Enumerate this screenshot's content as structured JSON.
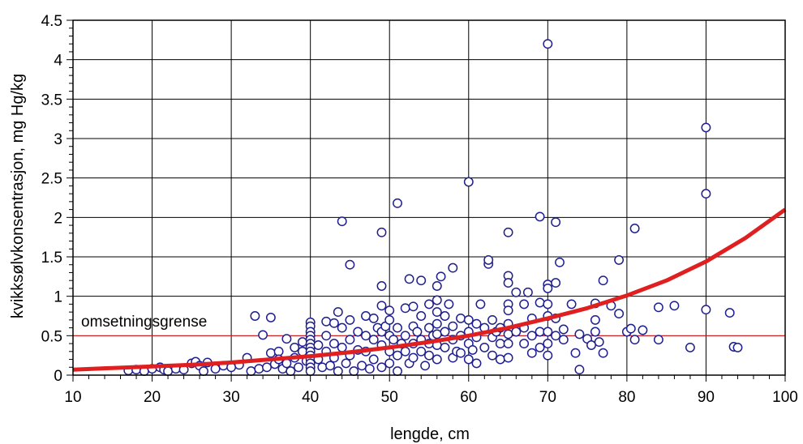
{
  "chart_data": {
    "type": "scatter",
    "title": "",
    "xlabel": "lengde, cm",
    "ylabel": "kvikksølvkonsentrasjon,  mg Hg/kg",
    "xlim": [
      10,
      100
    ],
    "ylim": [
      0,
      4.5
    ],
    "xticks": [
      10,
      20,
      30,
      40,
      50,
      60,
      70,
      80,
      90,
      100
    ],
    "yticks": [
      0,
      0.5,
      1,
      1.5,
      2,
      2.5,
      3,
      3.5,
      4,
      4.5
    ],
    "xtick_labels": [
      "10",
      "20",
      "30",
      "40",
      "50",
      "60",
      "70",
      "80",
      "90",
      "100"
    ],
    "ytick_labels": [
      "0",
      "0.5",
      "1",
      "1.5",
      "2",
      "2.5",
      "3",
      "3.5",
      "4",
      "4.5"
    ],
    "grid": true,
    "colors": {
      "points": "#1f1f8f",
      "curve": "#e02020",
      "threshold": "#e02020",
      "grid": "#000000"
    },
    "threshold": {
      "label": "omsetningsgrense",
      "y": 0.5
    },
    "fit_curve": {
      "x": [
        10,
        15,
        20,
        25,
        30,
        35,
        40,
        45,
        50,
        55,
        60,
        65,
        70,
        75,
        80,
        85,
        90,
        95,
        100
      ],
      "y": [
        0.07,
        0.09,
        0.11,
        0.13,
        0.16,
        0.2,
        0.24,
        0.29,
        0.35,
        0.42,
        0.5,
        0.6,
        0.72,
        0.85,
        1.01,
        1.2,
        1.44,
        1.74,
        2.1
      ]
    },
    "points": [
      [
        17,
        0.06
      ],
      [
        18,
        0.07
      ],
      [
        19,
        0.05
      ],
      [
        20,
        0.08
      ],
      [
        21,
        0.1
      ],
      [
        21.5,
        0.07
      ],
      [
        22,
        0.05
      ],
      [
        23,
        0.08
      ],
      [
        24,
        0.07
      ],
      [
        25,
        0.15
      ],
      [
        25.5,
        0.17
      ],
      [
        26,
        0.12
      ],
      [
        26.5,
        0.05
      ],
      [
        27,
        0.16
      ],
      [
        28,
        0.08
      ],
      [
        29,
        0.12
      ],
      [
        30,
        0.1
      ],
      [
        31,
        0.13
      ],
      [
        32,
        0.22
      ],
      [
        32.5,
        0.05
      ],
      [
        33,
        0.75
      ],
      [
        33.5,
        0.08
      ],
      [
        34,
        0.51
      ],
      [
        34.5,
        0.1
      ],
      [
        35,
        0.73
      ],
      [
        35,
        0.28
      ],
      [
        35.5,
        0.14
      ],
      [
        36,
        0.3
      ],
      [
        36,
        0.2
      ],
      [
        36.5,
        0.08
      ],
      [
        37,
        0.46
      ],
      [
        37,
        0.15
      ],
      [
        37.5,
        0.05
      ],
      [
        38,
        0.35
      ],
      [
        38,
        0.22
      ],
      [
        38.5,
        0.1
      ],
      [
        39,
        0.42
      ],
      [
        39,
        0.3
      ],
      [
        39.5,
        0.18
      ],
      [
        40,
        0.67
      ],
      [
        40,
        0.62
      ],
      [
        40,
        0.55
      ],
      [
        40,
        0.5
      ],
      [
        40,
        0.45
      ],
      [
        40,
        0.4
      ],
      [
        40,
        0.35
      ],
      [
        40,
        0.3
      ],
      [
        40,
        0.25
      ],
      [
        40,
        0.2
      ],
      [
        40,
        0.15
      ],
      [
        40,
        0.1
      ],
      [
        40,
        0.05
      ],
      [
        41,
        0.38
      ],
      [
        41,
        0.2
      ],
      [
        41.5,
        0.1
      ],
      [
        42,
        0.68
      ],
      [
        42,
        0.5
      ],
      [
        42,
        0.3
      ],
      [
        42.5,
        0.12
      ],
      [
        43,
        0.66
      ],
      [
        43,
        0.4
      ],
      [
        43,
        0.22
      ],
      [
        43.5,
        0.8
      ],
      [
        43.5,
        0.05
      ],
      [
        44,
        0.6
      ],
      [
        44,
        0.35
      ],
      [
        44,
        1.95
      ],
      [
        44.5,
        0.15
      ],
      [
        45,
        1.4
      ],
      [
        45,
        0.7
      ],
      [
        45,
        0.45
      ],
      [
        45,
        0.25
      ],
      [
        45.5,
        0.05
      ],
      [
        46,
        0.55
      ],
      [
        46,
        0.32
      ],
      [
        46.5,
        0.12
      ],
      [
        47,
        0.75
      ],
      [
        47,
        0.5
      ],
      [
        47,
        0.3
      ],
      [
        47.5,
        0.08
      ],
      [
        48,
        0.72
      ],
      [
        48,
        0.45
      ],
      [
        48,
        0.2
      ],
      [
        48.5,
        0.6
      ],
      [
        49,
        1.81
      ],
      [
        49,
        1.13
      ],
      [
        49,
        0.88
      ],
      [
        49,
        0.55
      ],
      [
        49,
        0.38
      ],
      [
        49,
        0.1
      ],
      [
        49.5,
        0.62
      ],
      [
        50,
        0.82
      ],
      [
        50,
        0.7
      ],
      [
        50,
        0.5
      ],
      [
        50,
        0.3
      ],
      [
        50,
        0.15
      ],
      [
        50.5,
        0.45
      ],
      [
        51,
        2.18
      ],
      [
        51,
        0.6
      ],
      [
        51,
        0.25
      ],
      [
        51,
        0.05
      ],
      [
        51.5,
        0.4
      ],
      [
        52,
        0.85
      ],
      [
        52,
        0.5
      ],
      [
        52,
        0.3
      ],
      [
        52.5,
        1.22
      ],
      [
        52.5,
        0.15
      ],
      [
        53,
        0.87
      ],
      [
        53,
        0.62
      ],
      [
        53,
        0.4
      ],
      [
        53,
        0.22
      ],
      [
        53.5,
        0.55
      ],
      [
        54,
        1.2
      ],
      [
        54,
        0.75
      ],
      [
        54,
        0.45
      ],
      [
        54,
        0.3
      ],
      [
        54.5,
        0.12
      ],
      [
        55,
        0.9
      ],
      [
        55,
        0.6
      ],
      [
        55,
        0.4
      ],
      [
        55,
        0.25
      ],
      [
        55.5,
        0.5
      ],
      [
        56,
        1.13
      ],
      [
        56,
        0.95
      ],
      [
        56,
        0.8
      ],
      [
        56,
        0.65
      ],
      [
        56,
        0.52
      ],
      [
        56,
        0.38
      ],
      [
        56,
        0.2
      ],
      [
        56.5,
        1.25
      ],
      [
        57,
        0.75
      ],
      [
        57,
        0.55
      ],
      [
        57,
        0.35
      ],
      [
        57.5,
        0.9
      ],
      [
        58,
        1.36
      ],
      [
        58,
        0.62
      ],
      [
        58,
        0.45
      ],
      [
        58,
        0.22
      ],
      [
        58.5,
        0.3
      ],
      [
        59,
        0.72
      ],
      [
        59,
        0.5
      ],
      [
        59,
        0.28
      ],
      [
        60,
        2.45
      ],
      [
        60,
        0.7
      ],
      [
        60,
        0.55
      ],
      [
        60,
        0.4
      ],
      [
        60,
        0.2
      ],
      [
        60.5,
        0.32
      ],
      [
        61,
        0.65
      ],
      [
        61,
        0.48
      ],
      [
        61,
        0.15
      ],
      [
        61.5,
        0.9
      ],
      [
        62,
        0.6
      ],
      [
        62,
        0.35
      ],
      [
        62.5,
        1.41
      ],
      [
        62.5,
        1.46
      ],
      [
        63,
        0.7
      ],
      [
        63,
        0.48
      ],
      [
        63,
        0.25
      ],
      [
        63.5,
        0.55
      ],
      [
        64,
        0.6
      ],
      [
        64,
        0.4
      ],
      [
        64,
        0.2
      ],
      [
        65,
        1.81
      ],
      [
        65,
        1.26
      ],
      [
        65,
        1.17
      ],
      [
        65,
        0.9
      ],
      [
        65,
        0.82
      ],
      [
        65,
        0.65
      ],
      [
        65,
        0.52
      ],
      [
        65,
        0.4
      ],
      [
        65,
        0.22
      ],
      [
        66,
        1.05
      ],
      [
        66,
        0.55
      ],
      [
        67,
        0.9
      ],
      [
        67,
        0.6
      ],
      [
        67,
        0.4
      ],
      [
        67.5,
        1.05
      ],
      [
        68,
        0.72
      ],
      [
        68,
        0.5
      ],
      [
        68,
        0.28
      ],
      [
        69,
        2.01
      ],
      [
        69,
        0.92
      ],
      [
        69,
        0.55
      ],
      [
        69,
        0.35
      ],
      [
        70,
        4.2
      ],
      [
        70,
        1.15
      ],
      [
        70,
        1.1
      ],
      [
        70,
        0.9
      ],
      [
        70,
        0.75
      ],
      [
        70,
        0.55
      ],
      [
        70,
        0.4
      ],
      [
        70,
        0.25
      ],
      [
        71,
        1.94
      ],
      [
        71,
        1.17
      ],
      [
        71,
        0.72
      ],
      [
        71,
        0.5
      ],
      [
        71.5,
        1.43
      ],
      [
        72,
        0.58
      ],
      [
        72,
        0.45
      ],
      [
        73,
        0.9
      ],
      [
        73.5,
        0.28
      ],
      [
        74,
        0.07
      ],
      [
        74,
        0.52
      ],
      [
        75,
        0.46
      ],
      [
        75.5,
        0.38
      ],
      [
        76,
        0.91
      ],
      [
        76,
        0.7
      ],
      [
        76,
        0.55
      ],
      [
        76.5,
        0.42
      ],
      [
        77,
        1.2
      ],
      [
        77,
        0.28
      ],
      [
        78,
        0.88
      ],
      [
        79,
        1.46
      ],
      [
        79,
        0.78
      ],
      [
        80,
        0.55
      ],
      [
        80.5,
        0.59
      ],
      [
        81,
        1.86
      ],
      [
        81,
        0.45
      ],
      [
        82,
        0.57
      ],
      [
        84,
        0.86
      ],
      [
        84,
        0.45
      ],
      [
        86,
        0.88
      ],
      [
        88,
        0.35
      ],
      [
        90,
        3.14
      ],
      [
        90,
        2.3
      ],
      [
        90,
        0.83
      ],
      [
        93,
        0.79
      ],
      [
        93.5,
        0.36
      ],
      [
        94,
        0.35
      ]
    ]
  }
}
